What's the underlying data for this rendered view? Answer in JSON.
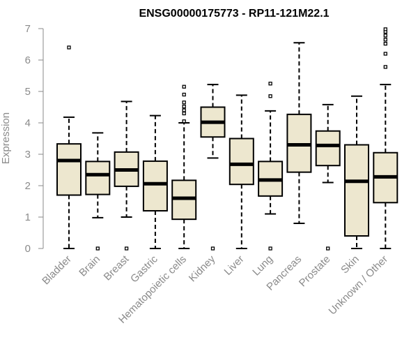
{
  "chart_data": {
    "type": "boxplot",
    "title": "ENSG00000175773 - RP11-121M22.1",
    "xlabel": "",
    "ylabel": "Expression",
    "ylim": [
      0,
      7
    ],
    "yticks": [
      "0",
      "1",
      "2",
      "3",
      "4",
      "5",
      "6",
      "7"
    ],
    "box_fill": "#ede7cf",
    "box_stroke": "#000000",
    "axis_color": "#8a8a8a",
    "categories": [
      "Bladder",
      "Brain",
      "Breast",
      "Gastric",
      "Hematopoietic cells",
      "Kidney",
      "Liver",
      "Lung",
      "Pancreas",
      "Prostate",
      "Skin",
      "Unknown / Other"
    ],
    "boxes": [
      {
        "name": "Bladder",
        "min": 0,
        "q1": 1.7,
        "median": 2.8,
        "q3": 3.33,
        "max": 4.18,
        "outliers": [
          6.4
        ]
      },
      {
        "name": "Brain",
        "min": 0.98,
        "q1": 1.72,
        "median": 2.35,
        "q3": 2.77,
        "max": 3.68,
        "outliers": [
          0
        ]
      },
      {
        "name": "Breast",
        "min": 1.0,
        "q1": 1.98,
        "median": 2.5,
        "q3": 3.07,
        "max": 4.68,
        "outliers": [
          0
        ]
      },
      {
        "name": "Gastric",
        "min": 0,
        "q1": 1.2,
        "median": 2.06,
        "q3": 2.78,
        "max": 4.23,
        "outliers": []
      },
      {
        "name": "Hematopoietic cells",
        "min": 0,
        "q1": 0.93,
        "median": 1.6,
        "q3": 2.17,
        "max": 4.0,
        "outliers": [
          4.05,
          4.3,
          4.4,
          4.52,
          4.65,
          4.9,
          5.15
        ]
      },
      {
        "name": "Kidney",
        "min": 2.88,
        "q1": 3.55,
        "median": 4.02,
        "q3": 4.5,
        "max": 5.22,
        "outliers": [
          0
        ]
      },
      {
        "name": "Liver",
        "min": 0,
        "q1": 2.04,
        "median": 2.68,
        "q3": 3.5,
        "max": 4.88,
        "outliers": []
      },
      {
        "name": "Lung",
        "min": 1.1,
        "q1": 1.67,
        "median": 2.18,
        "q3": 2.77,
        "max": 4.38,
        "outliers": [
          0,
          4.85,
          5.25
        ]
      },
      {
        "name": "Pancreas",
        "min": 0.8,
        "q1": 2.43,
        "median": 3.3,
        "q3": 4.27,
        "max": 6.55,
        "outliers": []
      },
      {
        "name": "Prostate",
        "min": 2.1,
        "q1": 2.64,
        "median": 3.28,
        "q3": 3.74,
        "max": 4.58,
        "outliers": [
          0
        ]
      },
      {
        "name": "Skin",
        "min": 0,
        "q1": 0.4,
        "median": 2.14,
        "q3": 3.3,
        "max": 4.85,
        "outliers": []
      },
      {
        "name": "Unknown / Other",
        "min": 0,
        "q1": 1.46,
        "median": 2.28,
        "q3": 3.05,
        "max": 5.22,
        "outliers": [
          5.78,
          6.2,
          6.52,
          6.65,
          6.78,
          6.9,
          6.98
        ]
      }
    ]
  }
}
